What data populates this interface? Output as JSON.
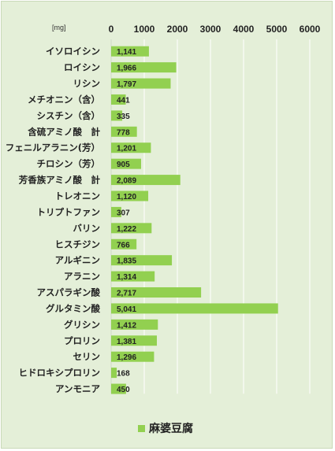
{
  "chart_data": {
    "type": "bar",
    "orientation": "horizontal",
    "unit_label": "[mg]",
    "title": "",
    "xlabel": "",
    "ylabel": "",
    "xlim": [
      0,
      6000
    ],
    "xticks": [
      0,
      1000,
      2000,
      3000,
      4000,
      5000,
      6000
    ],
    "grid": true,
    "legend_position": "bottom",
    "categories": [
      "イソロイシン",
      "ロイシン",
      "リシン",
      "メチオニン（含）",
      "シスチン（含）",
      "含硫アミノ酸　計",
      "フェニルアラニン(芳）",
      "チロシン（芳）",
      "芳香族アミノ酸　計",
      "トレオニン",
      "トリプトファン",
      "バリン",
      "ヒスチジン",
      "アルギニン",
      "アラニン",
      "アスパラギン酸",
      "グルタミン酸",
      "グリシン",
      "プロリン",
      "セリン",
      "ヒドロキシプロリン",
      "アンモニア"
    ],
    "series": [
      {
        "name": "麻婆豆腐",
        "color": "#92d050",
        "values": [
          1141,
          1966,
          1797,
          441,
          335,
          778,
          1201,
          905,
          2089,
          1120,
          307,
          1222,
          766,
          1835,
          1314,
          2717,
          5041,
          1412,
          1381,
          1296,
          168,
          450
        ],
        "labels": [
          "1,141",
          "1,966",
          "1,797",
          "441",
          "335",
          "778",
          "1,201",
          "905",
          "2,089",
          "1,120",
          "307",
          "1,222",
          "766",
          "1,835",
          "1,314",
          "2,717",
          "5,041",
          "1,412",
          "1,381",
          "1,296",
          "168",
          "450"
        ]
      }
    ]
  }
}
